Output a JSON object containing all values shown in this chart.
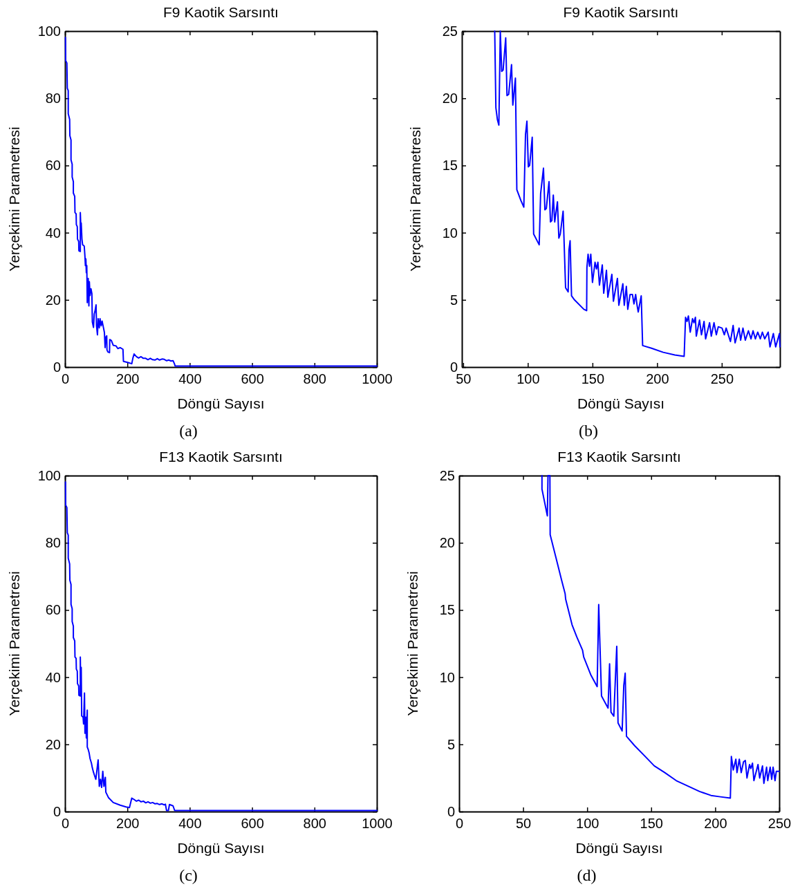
{
  "chart_data": [
    {
      "type": "line",
      "title": "F9 Kaotik Sarsıntı",
      "xlabel": "Döngü Sayısı",
      "ylabel": "Yerçekimi Parametresi",
      "annotations": [
        "(a)"
      ],
      "color": "#0000ff",
      "xlim": [
        0,
        1000
      ],
      "ylim": [
        0,
        100
      ],
      "xticks": [
        0,
        200,
        400,
        600,
        800,
        1000
      ],
      "yticks": [
        0,
        20,
        40,
        60,
        80,
        100
      ],
      "x": [
        1.5,
        2.2,
        6,
        7.4,
        10.4,
        10.4,
        14.9,
        15.6,
        19.3,
        19.3,
        23,
        23,
        26.8,
        26.8,
        31.2,
        32,
        35.7,
        36.4,
        39.4,
        40.1,
        43.9,
        44.6,
        49.1,
        49.1,
        51.3,
        52,
        54.3,
        56.5,
        61.7,
        64,
        65.4,
        66.9,
        68.4,
        69.9,
        71.4,
        74.4,
        76.6,
        78.1,
        80.3,
        83.3,
        86.2,
        87.7,
        91.4,
        93.7,
        95.9,
        99.6,
        101.1,
        104.1,
        106.3,
        110,
        112.3,
        116,
        119,
        123.4,
        126.4,
        128.6,
        130.9,
        133.8,
        134.6,
        137.5,
        142.8,
        143.5,
        148.7,
        154.6,
        163.6,
        169.5,
        177,
        185.9,
        187.4,
        200.7,
        214.1,
        217.8,
        221.6,
        229,
        236,
        243.9,
        251,
        258.7,
        266,
        273.6,
        281,
        288.5,
        296,
        303.3,
        311,
        318.2,
        326,
        333.1,
        340,
        346.5,
        350.9,
        353.2,
        660,
        1000
      ],
      "values": [
        98.1,
        91.2,
        90.5,
        83,
        82.3,
        75.4,
        73.7,
        68.9,
        67.6,
        61.7,
        60.4,
        56.6,
        55.2,
        51.8,
        50.8,
        46,
        45.6,
        42.4,
        41.8,
        38.1,
        37.4,
        34.6,
        34.4,
        46,
        40.5,
        42.9,
        38.1,
        36.4,
        36,
        32.9,
        30.2,
        32.2,
        28.1,
        30.2,
        19.2,
        26.4,
        18.2,
        25.4,
        21.3,
        23.3,
        21.9,
        13.4,
        11.8,
        15.8,
        16.5,
        18.5,
        12.3,
        9.6,
        14.4,
        11.7,
        14.4,
        12.3,
        13.7,
        11.7,
        10.3,
        5.8,
        8.9,
        9.3,
        5.1,
        4.5,
        4.3,
        8.2,
        7.9,
        6.5,
        6.3,
        5.5,
        5.8,
        5.3,
        1.7,
        1.4,
        1,
        2.7,
        3.9,
        3.1,
        2.7,
        3.1,
        2.6,
        2.6,
        2.2,
        2.6,
        2.2,
        2.1,
        2.5,
        2.1,
        2.4,
        2.3,
        1.9,
        2.1,
        1.8,
        1.9,
        1,
        0.3,
        0.3,
        0.3
      ]
    },
    {
      "type": "line",
      "title": "F9 Kaotik Sarsıntı",
      "xlabel": "Döngü Sayısı",
      "ylabel": "Yerçekimi Parametresi",
      "annotations": [
        "(b)"
      ],
      "color": "#0000ff",
      "xlim": [
        49,
        295
      ],
      "ylim": [
        0,
        25
      ],
      "xticks": [
        50,
        100,
        150,
        200,
        250
      ],
      "yticks": [
        0,
        5,
        10,
        15,
        20,
        25
      ],
      "x": [
        74.4,
        75.3,
        76.5,
        77.6,
        78.7,
        79.8,
        80.9,
        82.9,
        83.9,
        85.2,
        87.4,
        88.4,
        90.4,
        91.5,
        94.6,
        96.9,
        98.2,
        99.3,
        100.4,
        101.4,
        103.4,
        104.5,
        108.8,
        109.9,
        112.1,
        113.2,
        114.3,
        116.4,
        117.5,
        118.6,
        119.7,
        120.8,
        122.9,
        124,
        125.1,
        127.3,
        129.2,
        131.2,
        131.8,
        132.7,
        133.8,
        136.1,
        143.3,
        145.5,
        145.7,
        146.6,
        147.7,
        148.7,
        150,
        152,
        153.1,
        154.2,
        155.4,
        157.6,
        158.7,
        160.8,
        161.9,
        165,
        166.2,
        169.3,
        170.4,
        173.5,
        174.6,
        176.2,
        177.3,
        179.1,
        180.9,
        182.1,
        183.4,
        184.5,
        185.4,
        187.7,
        188.8,
        195.7,
        204.7,
        213.7,
        220.9,
        222,
        223.1,
        224.2,
        225.6,
        227.4,
        228.5,
        229.6,
        230.3,
        232.8,
        234.3,
        236.3,
        237.5,
        240.6,
        241.9,
        244,
        245.8,
        247.3,
        250.2,
        252,
        253.4,
        256.7,
        258.8,
        260.3,
        263.4,
        264.6,
        266.4,
        268.2,
        270.6,
        272.6,
        274.2,
        276,
        277.8,
        279.8,
        281.4,
        283.2,
        285.9,
        287.3,
        289.9,
        291.7,
        294.6,
        295
      ],
      "values": [
        25,
        19.3,
        18.4,
        18,
        25,
        22,
        22.1,
        24.5,
        20.2,
        20.3,
        22.5,
        19.5,
        21.5,
        13.2,
        12.4,
        11.9,
        17.3,
        18.3,
        14.9,
        15,
        17.1,
        9.9,
        9.1,
        12.9,
        14.8,
        11.7,
        11.8,
        13.8,
        10.8,
        10.9,
        12.8,
        10.8,
        12.3,
        9.6,
        9.9,
        11.6,
        5.9,
        5.6,
        8.7,
        9.4,
        5.3,
        5,
        4.3,
        4.2,
        7.4,
        8.4,
        7.5,
        8.4,
        6.3,
        7.8,
        7.3,
        7.8,
        6.1,
        7.6,
        5.5,
        7.2,
        5.2,
        6.9,
        4.9,
        6.6,
        4.6,
        6.2,
        4.6,
        6,
        4.3,
        5.4,
        5.4,
        4.7,
        5.4,
        4.6,
        4.1,
        5.3,
        1.6,
        1.4,
        1.1,
        0.9,
        0.8,
        3.7,
        3.4,
        3.8,
        2.6,
        3.6,
        3.3,
        3.7,
        2.3,
        3.5,
        2.4,
        3.4,
        2.1,
        3.3,
        2.3,
        3.3,
        2.4,
        3,
        2.9,
        2.4,
        2.9,
        1.9,
        3.1,
        1.8,
        2.9,
        2,
        2.9,
        2,
        2.7,
        2.1,
        2.7,
        2.1,
        2.6,
        2.1,
        2.6,
        2.1,
        2.6,
        1.5,
        2.5,
        1.5,
        2.5,
        1.5
      ]
    },
    {
      "type": "line",
      "title": "F13 Kaotik Sarsıntı",
      "xlabel": "Döngü Sayısı",
      "ylabel": "Yerçekimi Parametresi",
      "annotations": [
        "(c)"
      ],
      "color": "#0000ff",
      "xlim": [
        0,
        1000
      ],
      "ylim": [
        0,
        100
      ],
      "xticks": [
        0,
        200,
        400,
        600,
        800,
        1000
      ],
      "yticks": [
        0,
        20,
        40,
        60,
        80,
        100
      ],
      "x": [
        1.5,
        2.2,
        6,
        7.4,
        10.4,
        10.4,
        14.9,
        15.6,
        19.3,
        19.3,
        23,
        23,
        26.8,
        26.8,
        31.2,
        32,
        35.7,
        36.4,
        39.4,
        40.1,
        43.9,
        44.6,
        49.1,
        49.1,
        50.6,
        52,
        53.5,
        58,
        59.5,
        62.5,
        64,
        66.9,
        68.4,
        71.4,
        71.4,
        74.4,
        77.3,
        80.3,
        84.8,
        87.7,
        91.4,
        95.2,
        98.9,
        106.3,
        110,
        113.8,
        117.5,
        121.2,
        124.9,
        129.4,
        130.9,
        139.8,
        154.6,
        177,
        195.5,
        206.7,
        214.1,
        221.6,
        229,
        236.4,
        244,
        251.3,
        259,
        266.2,
        274,
        281,
        289,
        295.9,
        303,
        310.8,
        318,
        322,
        325.7,
        331.6,
        335,
        346.5,
        351.7,
        1000
      ],
      "values": [
        98.1,
        91.2,
        90.5,
        83,
        82.3,
        75.4,
        73.7,
        68.9,
        67.6,
        61.7,
        60.4,
        56.6,
        55.2,
        51.8,
        50.8,
        46,
        45.6,
        42.4,
        41.8,
        38.1,
        37.4,
        34.6,
        34.4,
        46,
        36,
        42.9,
        28.5,
        28.1,
        26.1,
        35.3,
        23.3,
        28.1,
        21.9,
        30.2,
        19.2,
        18.5,
        17.5,
        15.8,
        14.4,
        13,
        11.7,
        10.6,
        9.6,
        15.4,
        7.5,
        9.6,
        7.2,
        12,
        7.5,
        10.2,
        5.8,
        4.1,
        2.7,
        1.9,
        1.4,
        1.2,
        4,
        3.6,
        3.1,
        3.4,
        2.9,
        3.1,
        2.6,
        2.9,
        2.5,
        2.7,
        2.3,
        2.4,
        2.1,
        2.3,
        2,
        2.2,
        0.3,
        0.3,
        2.1,
        1.7,
        0.3,
        0.3
      ]
    },
    {
      "type": "line",
      "title": "F13 Kaotik Sarsıntı",
      "xlabel": "Döngü Sayısı",
      "ylabel": "Yerçekimi Parametresi",
      "annotations": [
        "(d)"
      ],
      "color": "#0000ff",
      "xlim": [
        0,
        250
      ],
      "ylim": [
        0,
        25
      ],
      "xticks": [
        0,
        50,
        100,
        150,
        200,
        250
      ],
      "yticks": [
        0,
        5,
        10,
        15,
        20,
        25
      ],
      "x": [
        64.7,
        64.7,
        68.9,
        69.4,
        70.9,
        71.1,
        75.6,
        80.1,
        82.8,
        83.2,
        88.2,
        91.9,
        96.4,
        97.3,
        102.7,
        107.8,
        109,
        111.2,
        116.3,
        117.5,
        118.6,
        120.8,
        123.1,
        124.1,
        127.3,
        128.6,
        129.7,
        130.7,
        137.1,
        144.3,
        152.4,
        160.6,
        169.6,
        178.7,
        187.7,
        196.7,
        204,
        211.8,
        212.6,
        214.1,
        216.1,
        217,
        218.8,
        220.3,
        222.1,
        223.5,
        224.8,
        226.8,
        227.8,
        229.1,
        230.2,
        233.4,
        234.7,
        236.9,
        238,
        240.1,
        241,
        242.9,
        244.1,
        245.2,
        246.7,
        247.7,
        250
      ],
      "values": [
        25,
        24,
        22,
        25,
        25,
        20.6,
        18.9,
        17.2,
        16.2,
        15.8,
        13.9,
        13,
        12,
        11.5,
        10.2,
        9.3,
        15.4,
        8.6,
        7.7,
        11,
        7.4,
        7.1,
        12.3,
        6.6,
        6,
        9.4,
        10.3,
        5.6,
        4.9,
        4.2,
        3.4,
        2.9,
        2.3,
        1.9,
        1.5,
        1.2,
        1.1,
        1,
        4.1,
        3.1,
        3.9,
        2.9,
        3.9,
        2.9,
        3.7,
        3.8,
        2.5,
        3.5,
        3.2,
        3.6,
        2.3,
        3.5,
        2.5,
        3.4,
        2.1,
        3.3,
        2.3,
        3.3,
        2.4,
        3.3,
        2.3,
        3,
        3
      ]
    }
  ]
}
